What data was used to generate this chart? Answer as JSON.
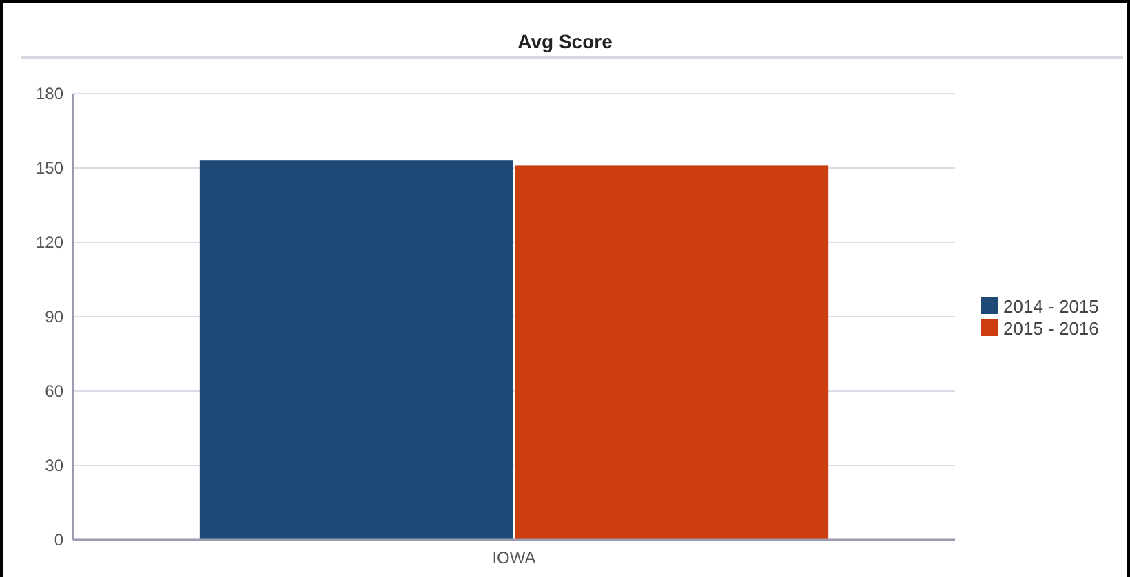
{
  "chart_data": {
    "type": "bar",
    "title": "Avg Score",
    "categories": [
      "IOWA"
    ],
    "series": [
      {
        "name": "2014 - 2015",
        "color": "#1f4a78",
        "values": [
          153
        ]
      },
      {
        "name": "2015 - 2016",
        "color": "#cc3d10",
        "values": [
          151
        ]
      }
    ],
    "ylim": [
      0,
      180
    ],
    "yticks": [
      0,
      30,
      60,
      90,
      120,
      150,
      180
    ],
    "grid": "y",
    "legend": "right"
  }
}
